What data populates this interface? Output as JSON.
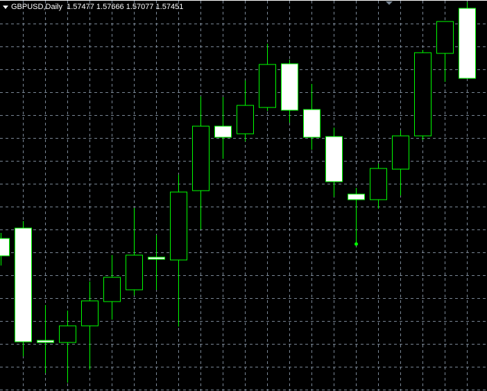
{
  "header": {
    "symbol_timeframe": "GBPUSD,Daily",
    "ohlc": "1.57477 1.57666 1.57077 1.57451"
  },
  "colors": {
    "background": "#000000",
    "grid": "#7a8796",
    "candle_outline": "#00ff00",
    "bull_body": "#000000",
    "bear_body": "#ffffff",
    "shift_marker": "#7a8796"
  },
  "chart_data": {
    "type": "candlestick",
    "symbol": "GBPUSD",
    "timeframe": "Daily",
    "grid": true,
    "ylim": [
      1.56012,
      1.58832
    ],
    "candles": [
      {
        "o": 1.57117,
        "h": 1.57157,
        "l": 1.56922,
        "c": 1.56992
      },
      {
        "o": 1.57192,
        "h": 1.57242,
        "l": 1.56267,
        "c": 1.56372
      },
      {
        "o": 1.56382,
        "h": 1.56637,
        "l": 1.56147,
        "c": 1.56367
      },
      {
        "o": 1.56367,
        "h": 1.56597,
        "l": 1.56077,
        "c": 1.56487
      },
      {
        "o": 1.56487,
        "h": 1.56807,
        "l": 1.56172,
        "c": 1.56667
      },
      {
        "o": 1.56662,
        "h": 1.56997,
        "l": 1.56532,
        "c": 1.56837
      },
      {
        "o": 1.56747,
        "h": 1.57337,
        "l": 1.56707,
        "c": 1.56997
      },
      {
        "o": 1.56982,
        "h": 1.57142,
        "l": 1.56747,
        "c": 1.56967
      },
      {
        "o": 1.56962,
        "h": 1.57577,
        "l": 1.56482,
        "c": 1.57452
      },
      {
        "o": 1.57462,
        "h": 1.58142,
        "l": 1.57182,
        "c": 1.57927
      },
      {
        "o": 1.57927,
        "h": 1.58137,
        "l": 1.57692,
        "c": 1.57847
      },
      {
        "o": 1.57872,
        "h": 1.58257,
        "l": 1.57817,
        "c": 1.58077
      },
      {
        "o": 1.58062,
        "h": 1.58522,
        "l": 1.58037,
        "c": 1.58372
      },
      {
        "o": 1.58377,
        "h": 1.58407,
        "l": 1.57952,
        "c": 1.58042
      },
      {
        "o": 1.58047,
        "h": 1.58232,
        "l": 1.57757,
        "c": 1.57847
      },
      {
        "o": 1.57852,
        "h": 1.57917,
        "l": 1.57417,
        "c": 1.57527
      },
      {
        "o": 1.57437,
        "h": 1.57482,
        "l": 1.57077,
        "c": 1.57397
      },
      {
        "o": 1.57397,
        "h": 1.57657,
        "l": 1.57332,
        "c": 1.57622
      },
      {
        "o": 1.57617,
        "h": 1.57897,
        "l": 1.57427,
        "c": 1.57857
      },
      {
        "o": 1.57857,
        "h": 1.58477,
        "l": 1.57827,
        "c": 1.58457
      },
      {
        "o": 1.58452,
        "h": 1.58682,
        "l": 1.58247,
        "c": 1.58682
      },
      {
        "o": 1.58777,
        "h": 1.58822,
        "l": 1.58272,
        "c": 1.58272
      }
    ],
    "marker": {
      "candle_index": 16,
      "price": 1.57077
    }
  }
}
